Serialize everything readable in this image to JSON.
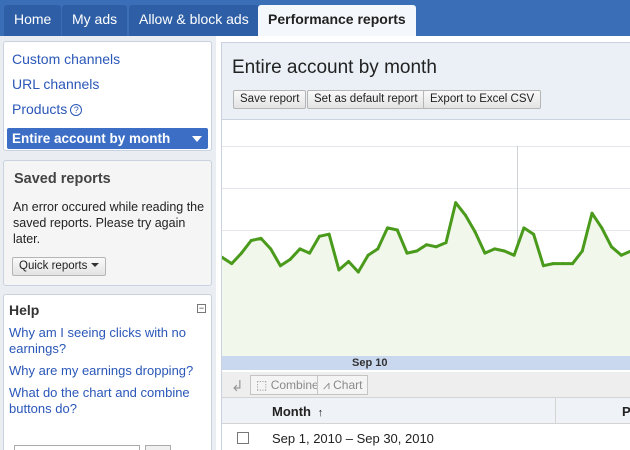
{
  "nav": {
    "tabs": [
      {
        "label": "Home"
      },
      {
        "label": "My ads"
      },
      {
        "label": "Allow & block ads"
      },
      {
        "label": "Performance reports"
      }
    ]
  },
  "sidebar": {
    "links": [
      "Custom channels",
      "URL channels",
      "Products"
    ],
    "selected": "Entire account by month"
  },
  "saved_reports": {
    "title": "Saved reports",
    "message": "An error occured while reading the saved reports. Please try again later.",
    "button_label": "Quick reports"
  },
  "help": {
    "title": "Help",
    "collapse_symbol": "−",
    "links": [
      "Why am I seeing clicks with no earnings?",
      "Why are my earnings dropping?",
      "What do the chart and combine buttons do?"
    ]
  },
  "report": {
    "title": "Entire account by month",
    "buttons": [
      "Save report",
      "Set as default report",
      "Export to Excel CSV"
    ]
  },
  "chart_data": {
    "type": "area",
    "x_label_visible": "Sep 10",
    "values": [
      47,
      44,
      49,
      55,
      56,
      51,
      43,
      46,
      51,
      49,
      57,
      58,
      41,
      45,
      40,
      48,
      51,
      61,
      60,
      49,
      50,
      53,
      52,
      54,
      73,
      67,
      59,
      49,
      51,
      50,
      48,
      61,
      58,
      43,
      44,
      44,
      44,
      50,
      68,
      61,
      52,
      48,
      50
    ],
    "ylim": [
      0,
      100
    ],
    "grid": true,
    "color": "#4a9a1c",
    "fill": "#f1f7ea"
  },
  "toolbar": {
    "combine_label": "Combine",
    "chart_label": "Chart"
  },
  "table": {
    "columns": [
      "Month",
      "P"
    ],
    "sort_arrow": "↑",
    "rows": [
      {
        "month": "Sep 1, 2010 – Sep 30, 2010"
      }
    ]
  }
}
